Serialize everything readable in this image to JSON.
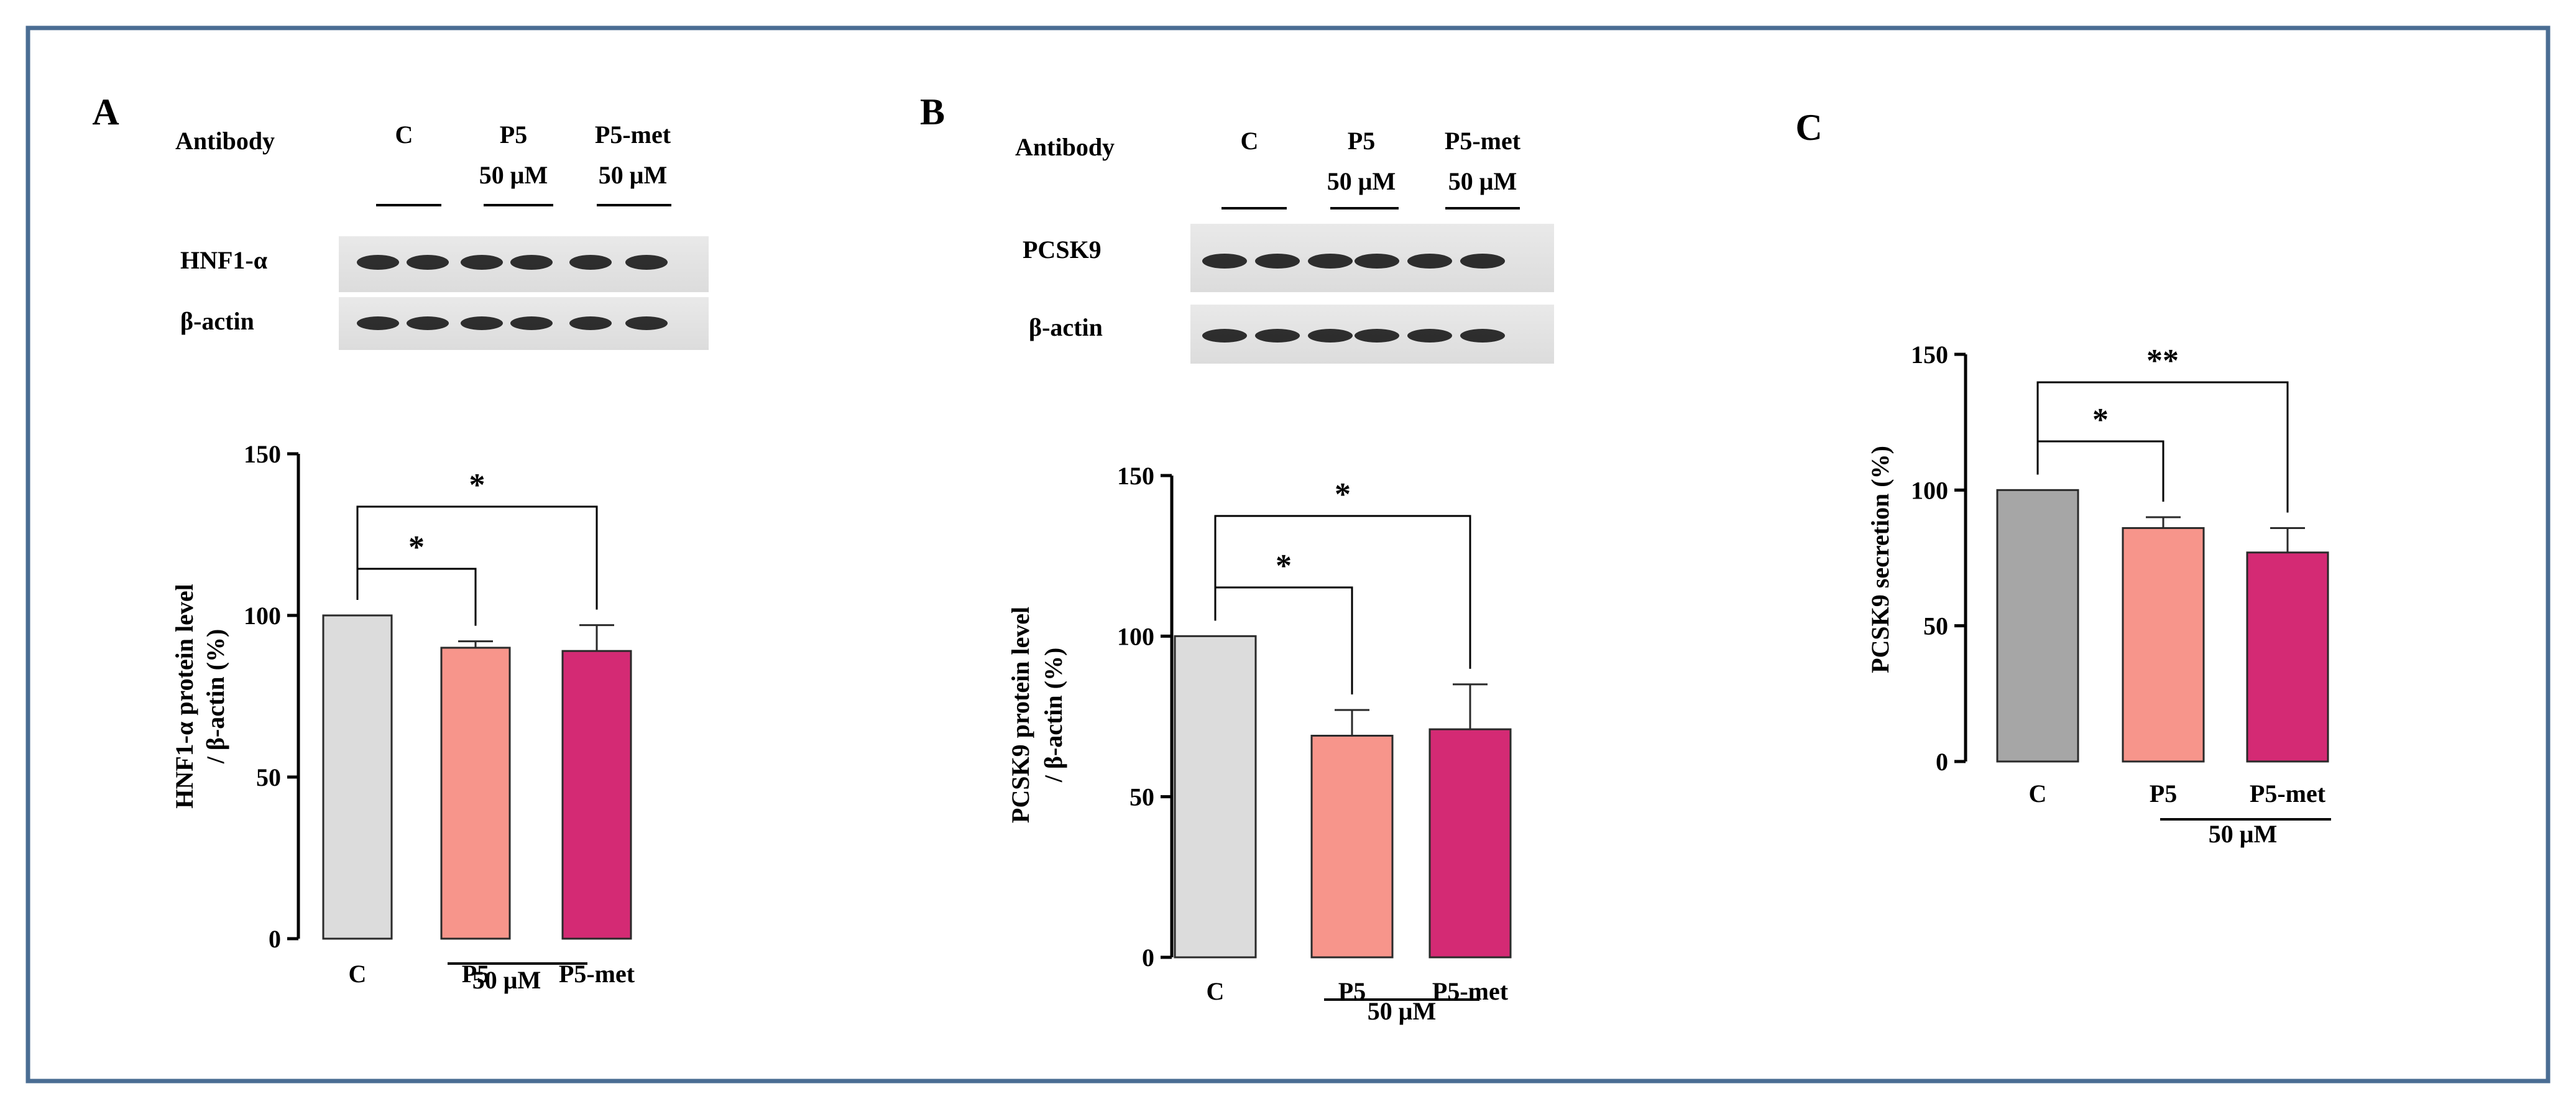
{
  "panel_labels": [
    "A",
    "B",
    "C"
  ],
  "blot_headers": {
    "antibody": "Antibody",
    "control": "C",
    "p5": "P5",
    "p5_dose": "50 μM",
    "p5met": "P5-met",
    "p5met_dose": "50 μM"
  },
  "blots": {
    "A": {
      "row1": "HNF1-α",
      "row2": "β-actin"
    },
    "B": {
      "row1": "PCSK9",
      "row2": "β-actin"
    }
  },
  "group_label": "50 μM",
  "colors": {
    "frame": "#4a6d93",
    "control_bar": "#dcdcdc",
    "control_bar_C": "#a6a6a6",
    "p5_bar": "#f7958b",
    "p5met_bar": "#d42a74"
  },
  "chart_data": [
    {
      "panel": "A",
      "type": "bar",
      "categories": [
        "C",
        "P5",
        "P5-met"
      ],
      "values": [
        100,
        90,
        89
      ],
      "errors": [
        0,
        2,
        8
      ],
      "ylabel_line1": "HNF1-α protein level",
      "ylabel_line2": "/ β-actin (%)",
      "ylim": [
        0,
        150
      ],
      "yticks": [
        "0",
        "50",
        "100",
        "150"
      ],
      "significance": [
        {
          "from": "C",
          "to": "P5",
          "mark": "*"
        },
        {
          "from": "C",
          "to": "P5-met",
          "mark": "*"
        }
      ]
    },
    {
      "panel": "B",
      "type": "bar",
      "categories": [
        "C",
        "P5",
        "P5-met"
      ],
      "values": [
        100,
        69,
        71
      ],
      "errors": [
        0,
        8,
        14
      ],
      "ylabel_line1": "PCSK9 protein level",
      "ylabel_line2": "/ β-actin (%)",
      "ylim": [
        0,
        150
      ],
      "yticks": [
        "0",
        "50",
        "100",
        "150"
      ],
      "significance": [
        {
          "from": "C",
          "to": "P5",
          "mark": "*"
        },
        {
          "from": "C",
          "to": "P5-met",
          "mark": "*"
        }
      ]
    },
    {
      "panel": "C",
      "type": "bar",
      "categories": [
        "C",
        "P5",
        "P5-met"
      ],
      "values": [
        100,
        86,
        77
      ],
      "errors": [
        0,
        4,
        9
      ],
      "ylabel_line1": "PCSK9 secretion (%)",
      "ylabel_line2": "",
      "ylim": [
        0,
        150
      ],
      "yticks": [
        "0",
        "50",
        "100",
        "150"
      ],
      "significance": [
        {
          "from": "C",
          "to": "P5",
          "mark": "*"
        },
        {
          "from": "C",
          "to": "P5-met",
          "mark": "**"
        }
      ]
    }
  ]
}
